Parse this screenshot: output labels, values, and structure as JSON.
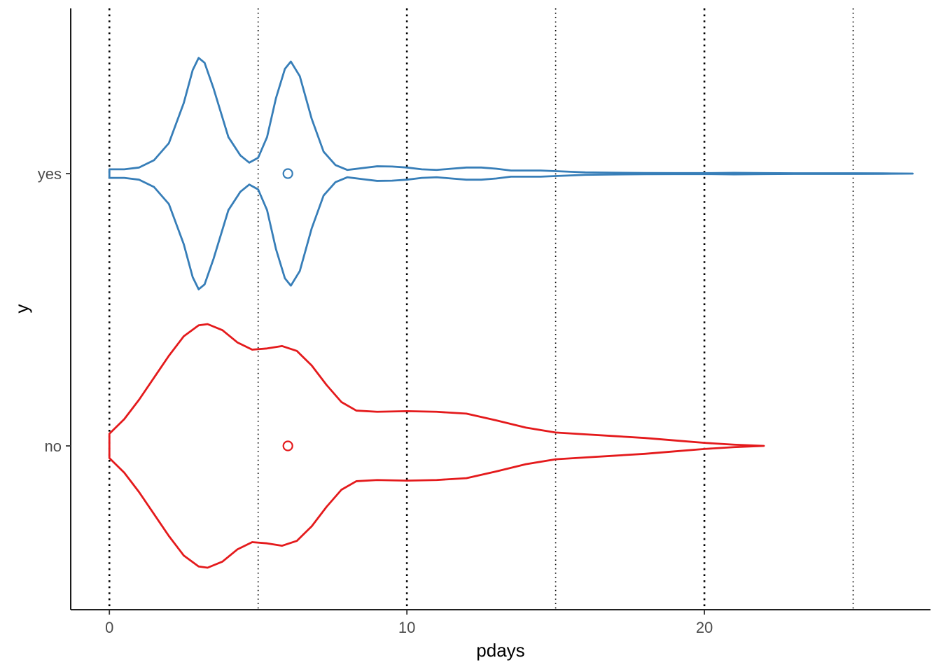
{
  "chart_data": {
    "type": "violin",
    "orientation": "horizontal",
    "title": "",
    "xlabel": "pdays",
    "ylabel": "y",
    "xlim": [
      -1.3,
      27.6
    ],
    "x_ticks": [
      0,
      10,
      20
    ],
    "x_tick_labels": [
      "0",
      "10",
      "20"
    ],
    "categories": [
      "no",
      "yes"
    ],
    "vlines": [
      {
        "x": 0,
        "style": "dotted-heavy"
      },
      {
        "x": 5,
        "style": "dotted-light"
      },
      {
        "x": 10,
        "style": "dotted-heavy"
      },
      {
        "x": 15,
        "style": "dotted-light"
      },
      {
        "x": 20,
        "style": "dotted-heavy"
      },
      {
        "x": 25,
        "style": "dotted-light"
      }
    ],
    "grid": false,
    "legend": "none",
    "series": [
      {
        "category": "no",
        "color": "#e41a1c",
        "point": 6,
        "density": [
          [
            0,
            0.1
          ],
          [
            0.5,
            0.22
          ],
          [
            1,
            0.38
          ],
          [
            1.5,
            0.56
          ],
          [
            2,
            0.74
          ],
          [
            2.5,
            0.9
          ],
          [
            3,
            0.99
          ],
          [
            3.3,
            1.0
          ],
          [
            3.8,
            0.95
          ],
          [
            4.3,
            0.85
          ],
          [
            4.8,
            0.79
          ],
          [
            5.3,
            0.8
          ],
          [
            5.8,
            0.82
          ],
          [
            6.3,
            0.78
          ],
          [
            6.8,
            0.66
          ],
          [
            7.3,
            0.5
          ],
          [
            7.8,
            0.36
          ],
          [
            8.3,
            0.29
          ],
          [
            9,
            0.28
          ],
          [
            10,
            0.285
          ],
          [
            11,
            0.28
          ],
          [
            12,
            0.265
          ],
          [
            13,
            0.21
          ],
          [
            14,
            0.15
          ],
          [
            15,
            0.11
          ],
          [
            16,
            0.095
          ],
          [
            17,
            0.08
          ],
          [
            18,
            0.065
          ],
          [
            19,
            0.045
          ],
          [
            20,
            0.025
          ],
          [
            21,
            0.01
          ],
          [
            22,
            0
          ]
        ]
      },
      {
        "category": "yes",
        "color": "#377eb8",
        "point": 6,
        "density": [
          [
            0,
            0.035
          ],
          [
            0.5,
            0.035
          ],
          [
            1,
            0.05
          ],
          [
            1.5,
            0.11
          ],
          [
            2,
            0.25
          ],
          [
            2.5,
            0.58
          ],
          [
            2.8,
            0.85
          ],
          [
            3,
            0.95
          ],
          [
            3.2,
            0.91
          ],
          [
            3.5,
            0.7
          ],
          [
            4,
            0.3
          ],
          [
            4.4,
            0.15
          ],
          [
            4.7,
            0.09
          ],
          [
            5,
            0.13
          ],
          [
            5.3,
            0.3
          ],
          [
            5.6,
            0.62
          ],
          [
            5.9,
            0.86
          ],
          [
            6.1,
            0.92
          ],
          [
            6.4,
            0.8
          ],
          [
            6.8,
            0.45
          ],
          [
            7.2,
            0.18
          ],
          [
            7.6,
            0.07
          ],
          [
            8,
            0.03
          ],
          [
            8.5,
            0.045
          ],
          [
            9,
            0.06
          ],
          [
            9.5,
            0.058
          ],
          [
            10,
            0.05
          ],
          [
            10.5,
            0.035
          ],
          [
            11,
            0.03
          ],
          [
            11.5,
            0.04
          ],
          [
            12,
            0.05
          ],
          [
            12.5,
            0.05
          ],
          [
            13,
            0.04
          ],
          [
            13.5,
            0.025
          ],
          [
            14,
            0.025
          ],
          [
            14.5,
            0.025
          ],
          [
            15,
            0.02
          ],
          [
            15.5,
            0.015
          ],
          [
            16,
            0.01
          ],
          [
            17,
            0.007
          ],
          [
            18,
            0.005
          ],
          [
            19,
            0.004
          ],
          [
            20,
            0.004
          ],
          [
            21,
            0.006
          ],
          [
            22,
            0.004
          ],
          [
            23,
            0.003
          ],
          [
            24,
            0.003
          ],
          [
            25,
            0.003
          ],
          [
            26,
            0.002
          ],
          [
            27,
            0
          ]
        ]
      }
    ]
  }
}
